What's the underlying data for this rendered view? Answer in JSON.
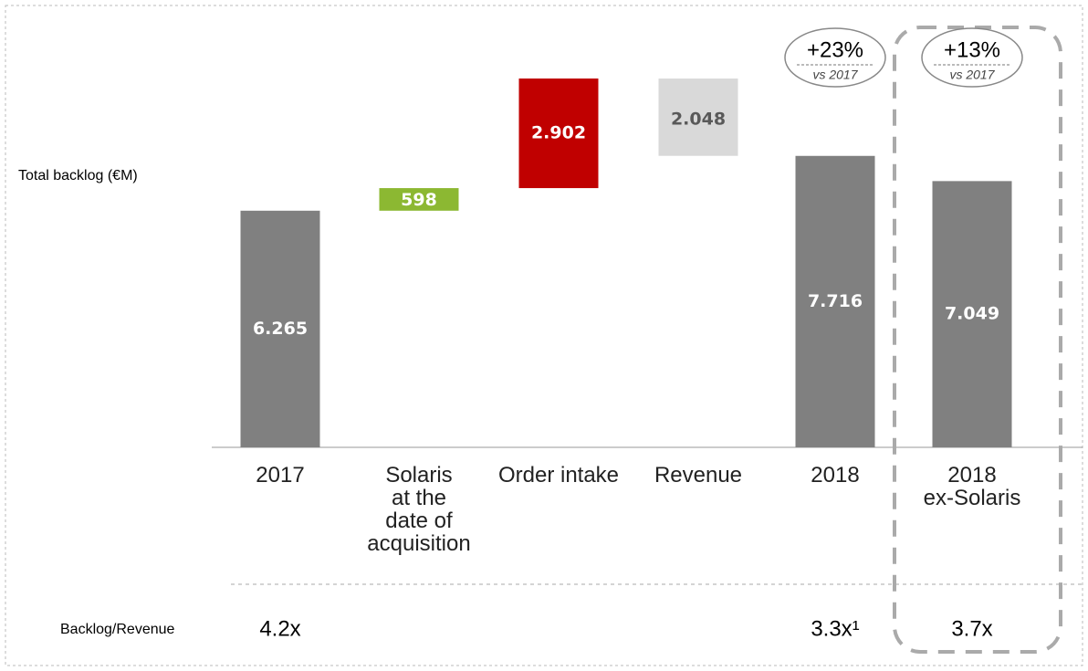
{
  "chart_data": {
    "type": "waterfall",
    "y_label": "Total backlog (€M)",
    "categories": [
      "2017",
      "Solaris\nat the\ndate of\nacquisition",
      "Order intake",
      "Revenue",
      "2018",
      "2018\nex-Solaris"
    ],
    "values": [
      6265,
      598,
      2902,
      -2048,
      7716,
      7049
    ],
    "value_labels": [
      "6.265",
      "598",
      "2.902",
      "2.048",
      "7.716",
      "7.049"
    ],
    "measures": [
      "absolute",
      "relative",
      "relative",
      "relative",
      "total",
      "absolute"
    ],
    "colors": [
      "#808080",
      "#8cb832",
      "#c00000",
      "#d9d9d9",
      "#808080",
      "#808080"
    ],
    "badges": [
      null,
      null,
      null,
      null,
      {
        "value": "+23%",
        "note": "vs 2017"
      },
      {
        "value": "+13%",
        "note": "vs 2017"
      }
    ],
    "ratio_label": "Backlog/Revenue",
    "ratios": [
      "4.2x",
      null,
      null,
      null,
      "3.3x¹",
      "3.7x"
    ]
  }
}
